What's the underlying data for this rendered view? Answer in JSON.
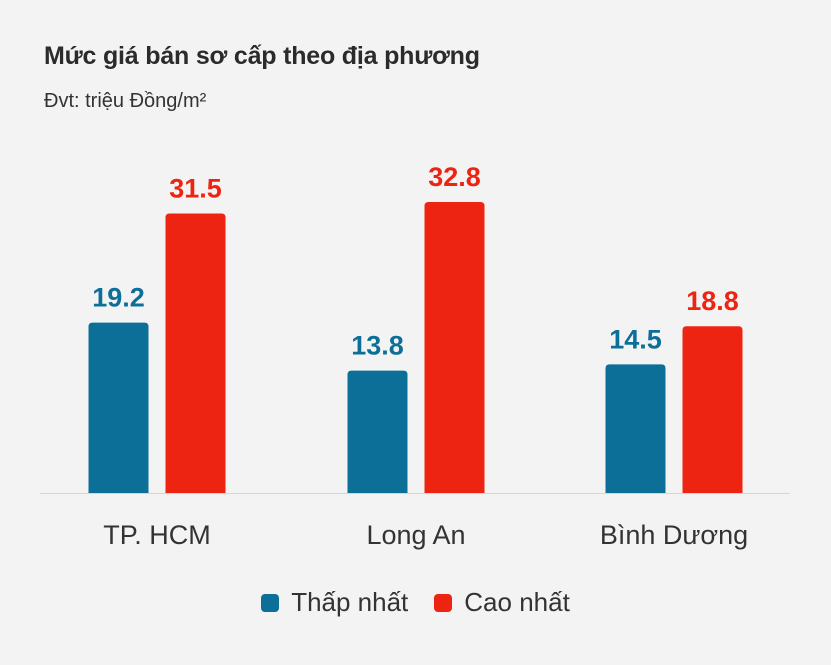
{
  "title": "Mức giá bán sơ cấp theo địa phương",
  "unit_label": "Đvt: triệu Đồng/m²",
  "colors": {
    "low": "#0c6f98",
    "high": "#ee2412",
    "axis": "#d6d6d6"
  },
  "legend": {
    "low_label": "Thấp nhất",
    "high_label": "Cao nhất"
  },
  "chart_data": {
    "type": "bar",
    "title": "Mức giá bán sơ cấp theo địa phương",
    "ylabel": "Đvt: triệu Đồng/m²",
    "categories": [
      "TP. HCM",
      "Long An",
      "Bình Dương"
    ],
    "series": [
      {
        "name": "Thấp nhất",
        "values": [
          19.2,
          13.8,
          14.5
        ]
      },
      {
        "name": "Cao nhất",
        "values": [
          31.5,
          32.8,
          18.8
        ]
      }
    ],
    "ylim": [
      0,
      32.8
    ],
    "grid": false,
    "legend_position": "bottom"
  }
}
